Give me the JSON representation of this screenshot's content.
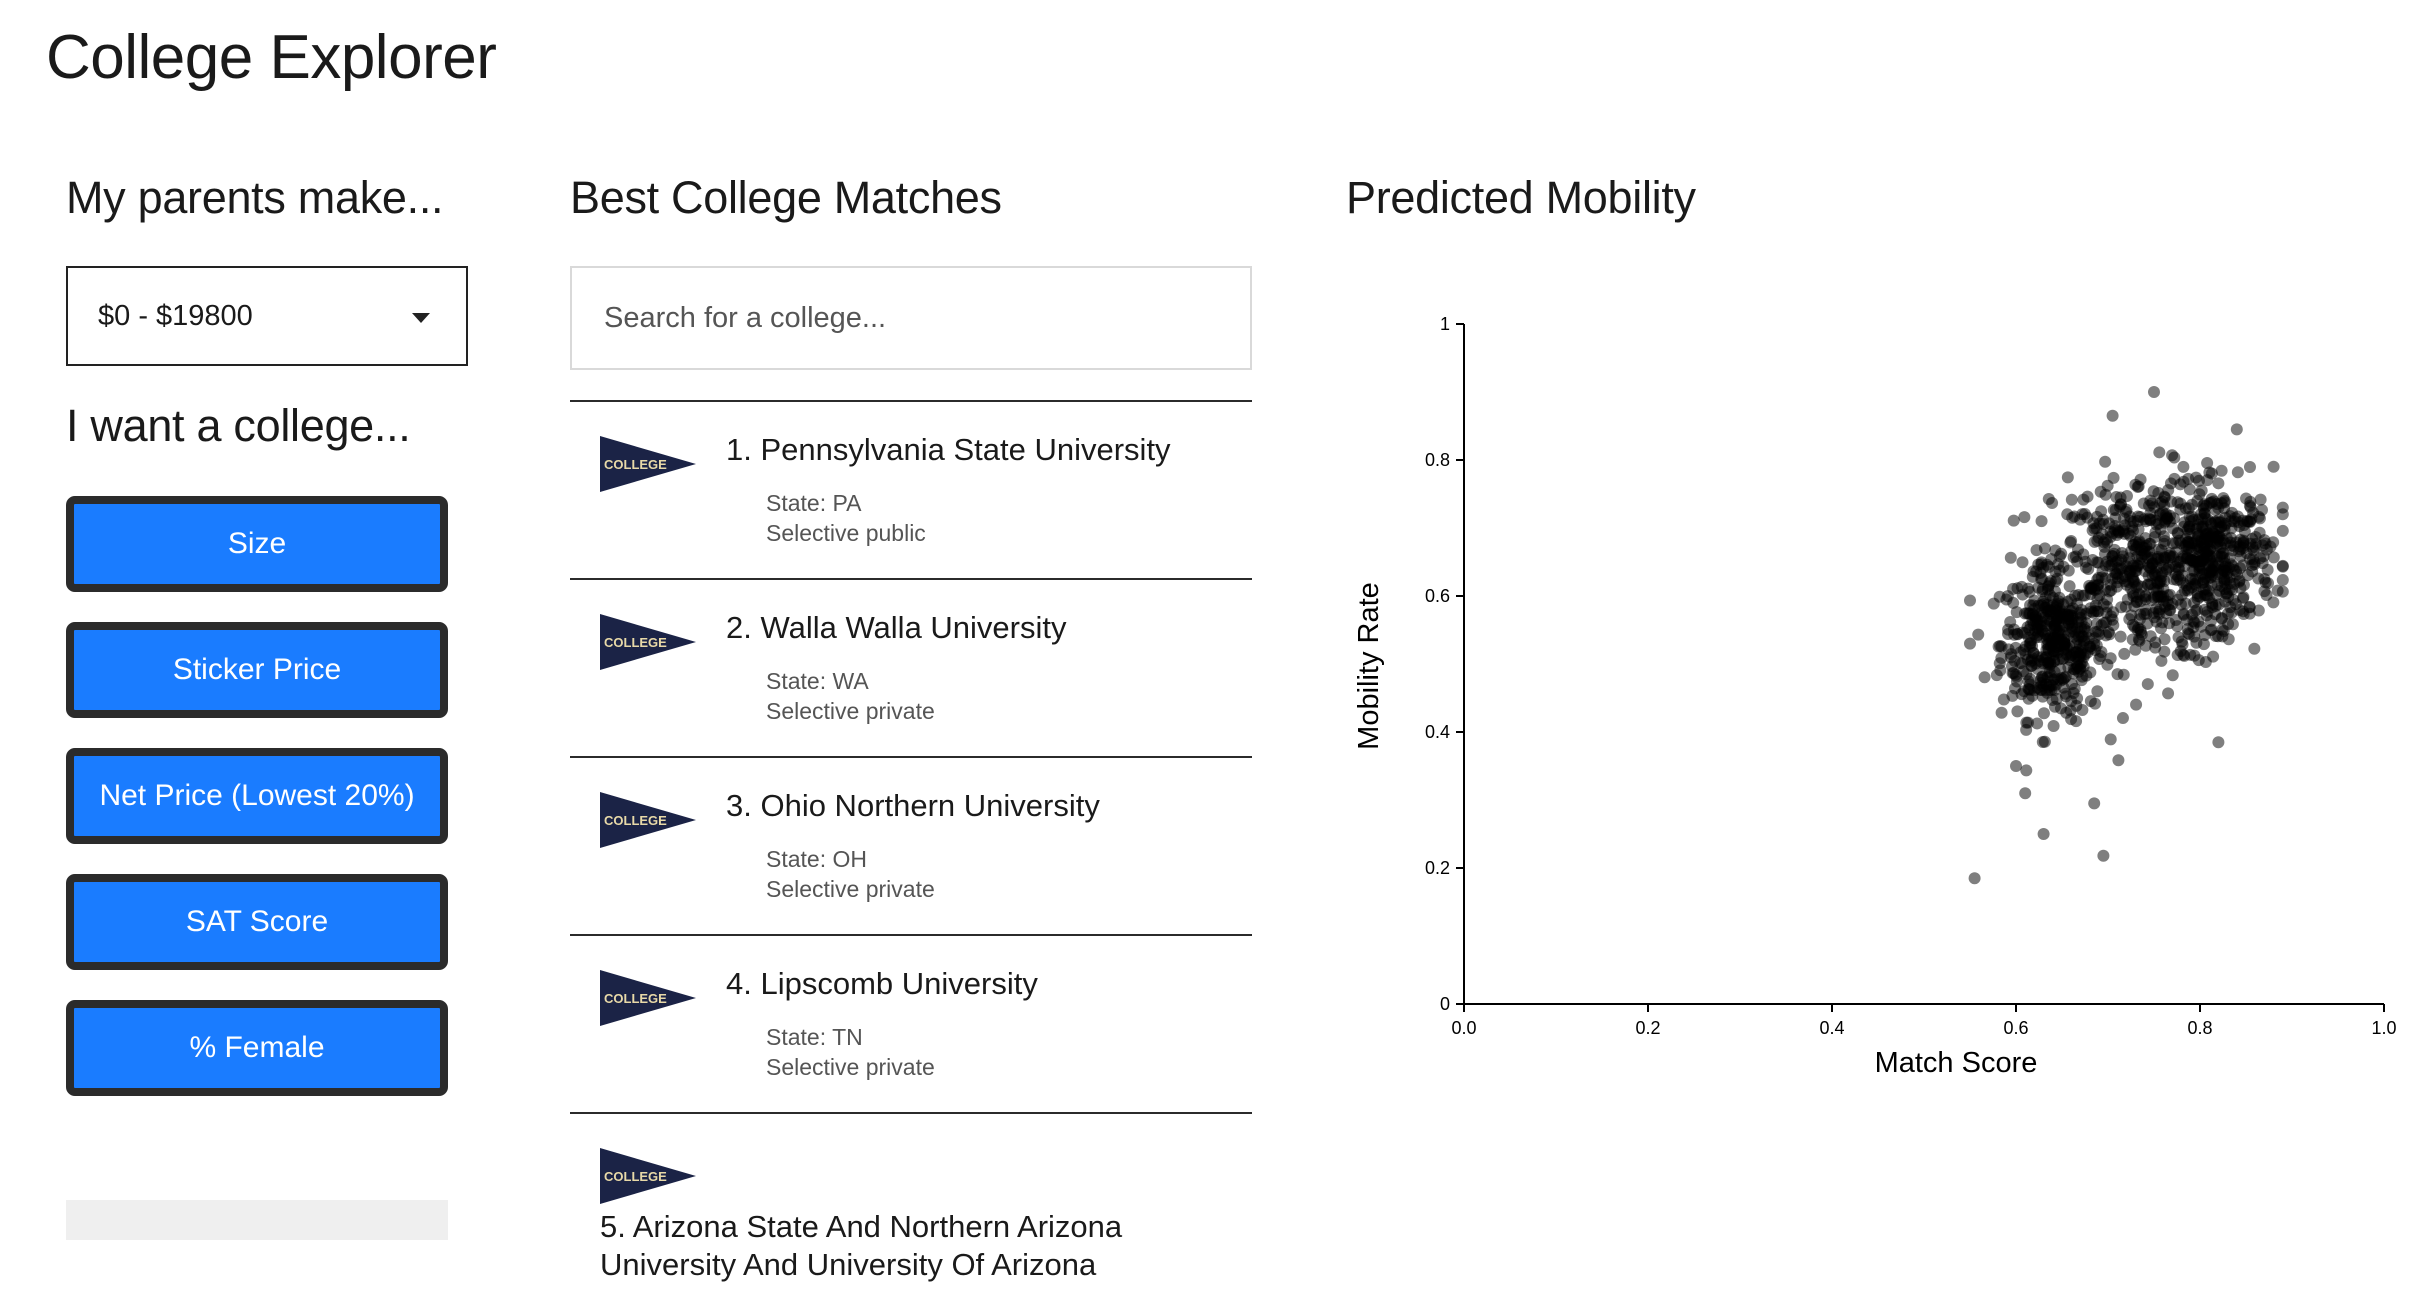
{
  "app": {
    "title": "College Explorer"
  },
  "income": {
    "heading": "My parents make...",
    "selected": "$0 - $19800"
  },
  "filters": {
    "heading": "I want a college...",
    "buttons": [
      "Size",
      "Sticker Price",
      "Net Price (Lowest 20%)",
      "SAT Score",
      "% Female"
    ]
  },
  "matches": {
    "heading": "Best College Matches",
    "search_placeholder": "Search for a college...",
    "badge_text": "COLLEGE",
    "state_prefix": "State: ",
    "items": [
      {
        "name": "1. Pennsylvania State University",
        "state": "PA",
        "type": "Selective public"
      },
      {
        "name": "2. Walla Walla University",
        "state": "WA",
        "type": "Selective private"
      },
      {
        "name": "3. Ohio Northern University",
        "state": "OH",
        "type": "Selective private"
      },
      {
        "name": "4. Lipscomb University",
        "state": "TN",
        "type": "Selective private"
      },
      {
        "name": "5. Arizona State And Northern Arizona University And University Of Arizona",
        "state": "",
        "type": ""
      }
    ]
  },
  "chart_data": {
    "type": "scatter",
    "title": "Predicted Mobility",
    "xlabel": "Match Score",
    "ylabel": "Mobility Rate",
    "xlim": [
      0,
      1.0
    ],
    "ylim": [
      0,
      1
    ],
    "xticks": [
      "0.0",
      "0.2",
      "0.4",
      "0.6",
      "0.8",
      "1.0"
    ],
    "yticks": [
      "0",
      "0.2",
      "0.4",
      "0.6",
      "0.8",
      "1"
    ],
    "point_color": "#000000",
    "point_opacity": 0.5,
    "clusters": [
      {
        "center": [
          0.64,
          0.53
        ],
        "spread": [
          0.028,
          0.055
        ],
        "count": 420
      },
      {
        "center": [
          0.74,
          0.64
        ],
        "spread": [
          0.05,
          0.07
        ],
        "count": 520
      },
      {
        "center": [
          0.82,
          0.66
        ],
        "spread": [
          0.03,
          0.05
        ],
        "count": 320
      }
    ],
    "outliers": [
      [
        0.555,
        0.185
      ],
      [
        0.695,
        0.218
      ],
      [
        0.63,
        0.25
      ],
      [
        0.685,
        0.295
      ],
      [
        0.82,
        0.385
      ],
      [
        0.75,
        0.9
      ],
      [
        0.705,
        0.865
      ],
      [
        0.89,
        0.73
      ],
      [
        0.88,
        0.79
      ],
      [
        0.84,
        0.845
      ],
      [
        0.55,
        0.53
      ],
      [
        0.61,
        0.31
      ],
      [
        0.6,
        0.35
      ]
    ]
  }
}
